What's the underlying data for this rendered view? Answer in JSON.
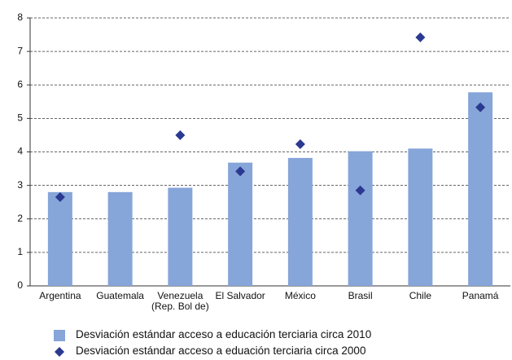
{
  "chart_data": {
    "type": "bar",
    "categories": [
      "Argentina",
      "Guatemala",
      "Venezuela\n(Rep. Bol de)",
      "El Salvador",
      "México",
      "Brasil",
      "Chile",
      "Panamá"
    ],
    "series": [
      {
        "name": "Desviación estándar acceso a educación terciaria circa 2010",
        "type": "bar",
        "color": "#86a5d9",
        "values": [
          2.8,
          2.8,
          2.93,
          3.68,
          3.82,
          4.02,
          4.1,
          5.78
        ]
      },
      {
        "name": "Desviación estándar acceso a eduación terciaria circa 2000",
        "type": "scatter",
        "marker": "diamond",
        "color": "#2b3990",
        "values": [
          2.65,
          null,
          4.5,
          3.42,
          4.23,
          2.85,
          7.42,
          5.33
        ]
      }
    ],
    "ylim": [
      0,
      8
    ],
    "yticks": [
      0,
      1,
      2,
      3,
      4,
      5,
      6,
      7,
      8
    ],
    "grid": true,
    "legend": "bottom"
  }
}
